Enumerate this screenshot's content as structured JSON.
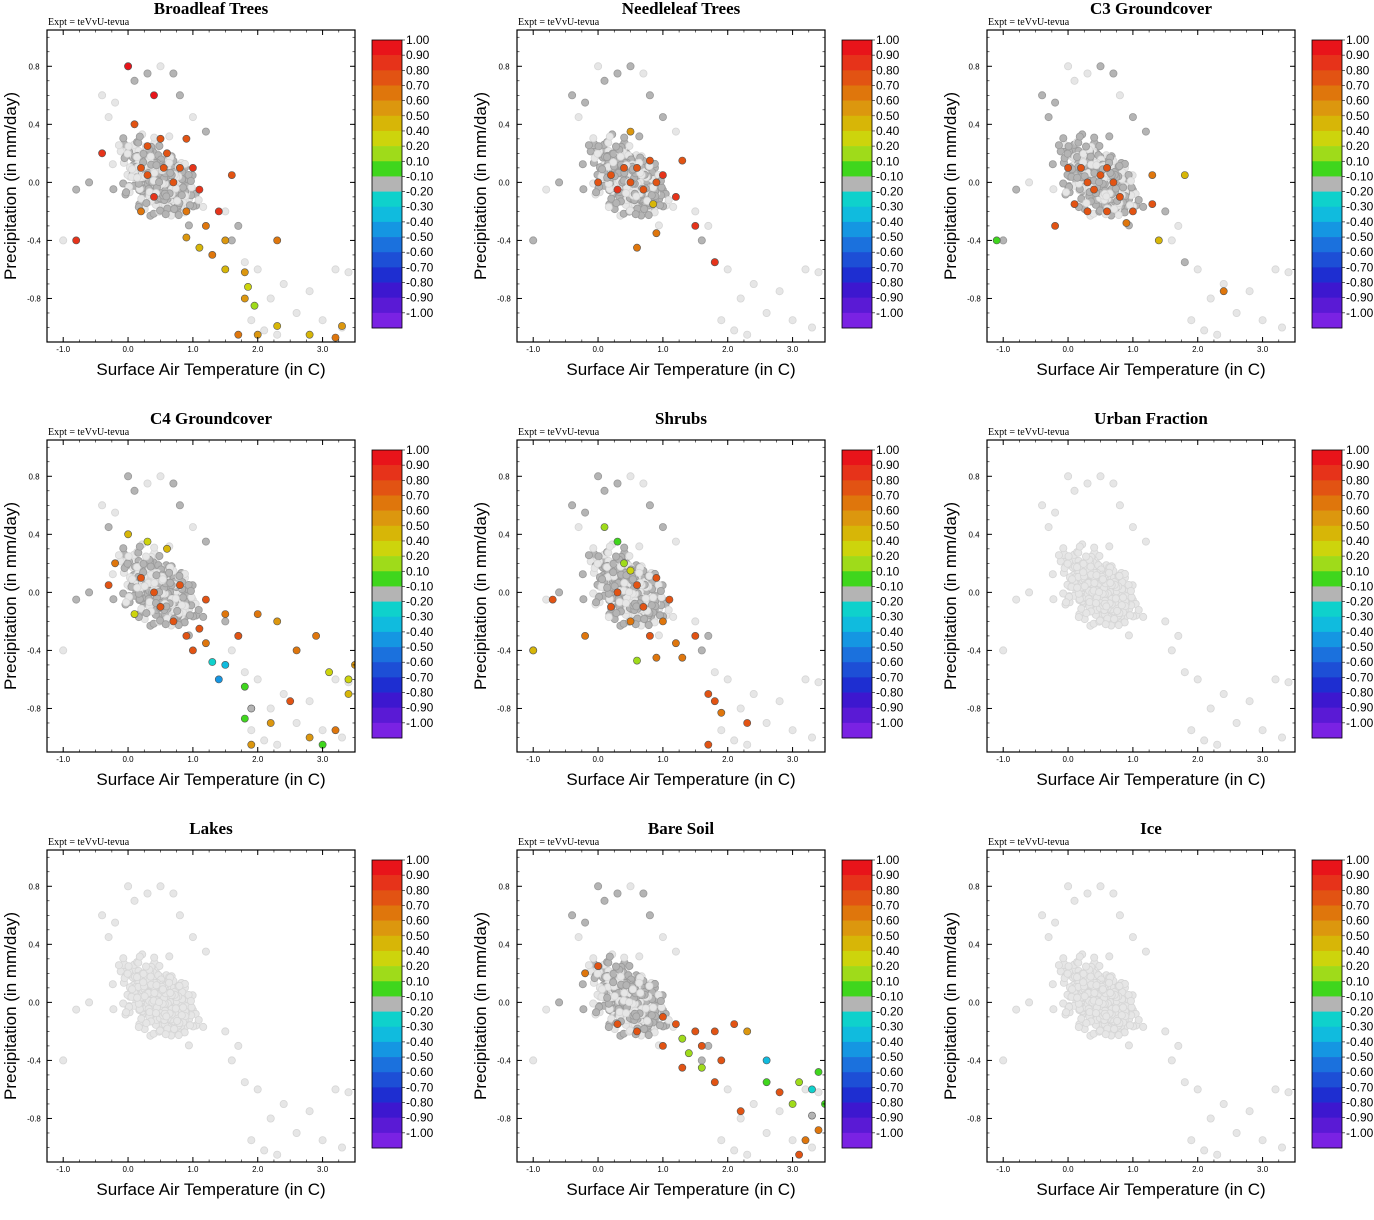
{
  "figure": {
    "expt_label": "Expt = teVvU-tevua"
  },
  "colorbar": {
    "labels": [
      "1.00",
      "0.90",
      "0.80",
      "0.70",
      "0.60",
      "0.50",
      "0.40",
      "0.20",
      "0.10",
      "-0.10",
      "-0.20",
      "-0.30",
      "-0.40",
      "-0.50",
      "-0.60",
      "-0.70",
      "-0.80",
      "-0.90",
      "-1.00"
    ],
    "colors": [
      "#e8141a",
      "#e6331a",
      "#e25313",
      "#df760c",
      "#dc970e",
      "#d7b607",
      "#cdd40c",
      "#9fdb1a",
      "#3fd61d",
      "#b4b4b4",
      "#0fd1cc",
      "#10bbde",
      "#1596e2",
      "#1b71dd",
      "#1d4fd6",
      "#1e2ed1",
      "#3d17cf",
      "#5a1ad5",
      "#7a22e3"
    ]
  },
  "chart_data": [
    {
      "type": "scatter",
      "title": "Broadleaf Trees",
      "xlabel": "Surface Air Temperature (in C)",
      "ylabel": "Precipitation (in mm/day)",
      "xlim": [
        -1.25,
        3.5
      ],
      "ylim": [
        -1.1,
        1.05
      ],
      "xticks": [
        "-1.0",
        "0.0",
        "1.0",
        "2.0",
        "3.0"
      ],
      "yticks": [
        "0.8",
        "0.4",
        "0.0",
        "-0.4",
        "-0.8"
      ],
      "points": [
        [
          0.0,
          0.8,
          0
        ],
        [
          0.4,
          0.6,
          0
        ],
        [
          0.1,
          0.4,
          2
        ],
        [
          0.3,
          0.25,
          2
        ],
        [
          0.2,
          0.1,
          2
        ],
        [
          0.5,
          0.3,
          2
        ],
        [
          0.6,
          0.2,
          2
        ],
        [
          0.7,
          0.0,
          2
        ],
        [
          0.8,
          0.1,
          2
        ],
        [
          0.9,
          0.3,
          2
        ],
        [
          0.4,
          -0.1,
          1
        ],
        [
          1.0,
          0.1,
          1
        ],
        [
          1.1,
          -0.05,
          1
        ],
        [
          1.6,
          0.05,
          2
        ],
        [
          0.3,
          0.05,
          2
        ],
        [
          0.55,
          0.1,
          2
        ],
        [
          0.2,
          -0.2,
          3
        ],
        [
          0.9,
          -0.2,
          3
        ],
        [
          1.2,
          -0.3,
          3
        ],
        [
          0.9,
          -0.38,
          4
        ],
        [
          1.1,
          -0.45,
          5
        ],
        [
          1.3,
          -0.5,
          3
        ],
        [
          1.5,
          -0.4,
          4
        ],
        [
          1.5,
          -0.6,
          5
        ],
        [
          1.8,
          -0.62,
          4
        ],
        [
          1.85,
          -0.72,
          6
        ],
        [
          1.8,
          -0.8,
          4
        ],
        [
          1.95,
          -0.85,
          7
        ],
        [
          1.7,
          -1.05,
          3
        ],
        [
          2.0,
          -1.05,
          4
        ],
        [
          2.3,
          -0.99,
          5
        ],
        [
          2.8,
          -1.05,
          5
        ],
        [
          3.3,
          -0.99,
          4
        ],
        [
          3.2,
          -1.07,
          3
        ],
        [
          2.3,
          -0.4,
          3
        ],
        [
          1.4,
          -0.2,
          1
        ],
        [
          -0.4,
          0.2,
          1
        ],
        [
          -0.8,
          -0.4,
          1
        ]
      ]
    },
    {
      "type": "scatter",
      "title": "Needleleaf Trees",
      "xlabel": "Surface Air Temperature (in C)",
      "ylabel": "Precipitation (in mm/day)",
      "xlim": [
        -1.25,
        3.5
      ],
      "ylim": [
        -1.1,
        1.05
      ],
      "xticks": [
        "-1.0",
        "0.0",
        "1.0",
        "2.0",
        "3.0"
      ],
      "yticks": [
        "0.8",
        "0.4",
        "0.0",
        "-0.4",
        "-0.8"
      ],
      "points": [
        [
          0.0,
          0.0,
          2
        ],
        [
          0.2,
          0.05,
          2
        ],
        [
          0.4,
          0.1,
          2
        ],
        [
          0.6,
          0.1,
          2
        ],
        [
          0.8,
          0.15,
          2
        ],
        [
          1.3,
          0.15,
          2
        ],
        [
          0.9,
          0.0,
          2
        ],
        [
          0.7,
          -0.05,
          2
        ],
        [
          0.5,
          0.0,
          2
        ],
        [
          0.3,
          -0.05,
          1
        ],
        [
          0.5,
          0.35,
          4
        ],
        [
          0.9,
          -0.35,
          3
        ],
        [
          0.6,
          -0.45,
          3
        ],
        [
          0.85,
          -0.15,
          5
        ],
        [
          1.0,
          0.05,
          1
        ],
        [
          1.2,
          -0.1,
          1
        ],
        [
          1.5,
          -0.3,
          1
        ],
        [
          1.8,
          -0.55,
          1
        ]
      ]
    },
    {
      "type": "scatter",
      "title": "C3 Groundcover",
      "xlabel": "Surface Air Temperature (in C)",
      "ylabel": "Precipitation (in mm/day)",
      "xlim": [
        -1.25,
        3.5
      ],
      "ylim": [
        -1.1,
        1.05
      ],
      "xticks": [
        "-1.0",
        "0.0",
        "1.0",
        "2.0",
        "3.0"
      ],
      "yticks": [
        "0.8",
        "0.4",
        "0.0",
        "-0.4",
        "-0.8"
      ],
      "points": [
        [
          -1.1,
          -0.4,
          8
        ],
        [
          -0.2,
          -0.3,
          2
        ],
        [
          0.1,
          -0.15,
          2
        ],
        [
          0.3,
          -0.2,
          2
        ],
        [
          0.4,
          -0.05,
          2
        ],
        [
          0.5,
          0.05,
          2
        ],
        [
          0.6,
          0.1,
          2
        ],
        [
          0.2,
          0.1,
          2
        ],
        [
          0.3,
          0.0,
          2
        ],
        [
          0.7,
          0.0,
          2
        ],
        [
          0.8,
          -0.1,
          2
        ],
        [
          0.6,
          -0.2,
          2
        ],
        [
          1.0,
          -0.2,
          2
        ],
        [
          1.3,
          -0.15,
          2
        ],
        [
          0.9,
          -0.28,
          3
        ],
        [
          1.3,
          0.05,
          3
        ],
        [
          1.4,
          -0.4,
          5
        ],
        [
          1.8,
          0.05,
          5
        ],
        [
          2.4,
          -0.75,
          3
        ],
        [
          0.0,
          0.1,
          2
        ]
      ]
    },
    {
      "type": "scatter",
      "title": "C4 Groundcover",
      "xlabel": "Surface Air Temperature (in C)",
      "ylabel": "Precipitation (in mm/day)",
      "xlim": [
        -1.25,
        3.5
      ],
      "ylim": [
        -1.1,
        1.05
      ],
      "xticks": [
        "-1.0",
        "0.0",
        "1.0",
        "2.0",
        "3.0"
      ],
      "yticks": [
        "0.8",
        "0.4",
        "0.0",
        "-0.4",
        "-0.8"
      ],
      "points": [
        [
          0.0,
          0.4,
          5
        ],
        [
          0.3,
          0.35,
          6
        ],
        [
          0.6,
          0.3,
          5
        ],
        [
          -0.2,
          0.2,
          3
        ],
        [
          -0.3,
          0.05,
          2
        ],
        [
          0.2,
          0.1,
          2
        ],
        [
          0.4,
          0.0,
          2
        ],
        [
          0.5,
          -0.1,
          2
        ],
        [
          0.7,
          -0.2,
          2
        ],
        [
          0.9,
          -0.3,
          2
        ],
        [
          1.0,
          -0.4,
          2
        ],
        [
          1.2,
          -0.35,
          3
        ],
        [
          1.3,
          -0.48,
          10
        ],
        [
          1.5,
          -0.5,
          11
        ],
        [
          1.4,
          -0.6,
          12
        ],
        [
          1.8,
          -0.65,
          8
        ],
        [
          1.9,
          -0.8,
          9
        ],
        [
          2.2,
          -0.9,
          4
        ],
        [
          2.5,
          -0.75,
          2
        ],
        [
          2.8,
          -1.0,
          4
        ],
        [
          3.0,
          -1.05,
          8
        ],
        [
          3.2,
          -0.95,
          3
        ],
        [
          3.4,
          -0.7,
          5
        ],
        [
          3.5,
          -0.5,
          4
        ],
        [
          3.4,
          -0.6,
          6
        ],
        [
          3.1,
          -0.55,
          6
        ],
        [
          2.9,
          -0.3,
          3
        ],
        [
          2.6,
          -0.4,
          3
        ],
        [
          2.3,
          -0.2,
          4
        ],
        [
          2.0,
          -0.15,
          3
        ],
        [
          1.7,
          -0.3,
          2
        ],
        [
          1.5,
          -0.15,
          3
        ],
        [
          1.2,
          -0.05,
          2
        ],
        [
          1.1,
          -0.25,
          2
        ],
        [
          0.8,
          0.05,
          2
        ],
        [
          0.1,
          -0.15,
          6
        ],
        [
          1.9,
          -1.05,
          4
        ],
        [
          1.8,
          -0.87,
          8
        ]
      ]
    },
    {
      "type": "scatter",
      "title": "Shrubs",
      "xlabel": "Surface Air Temperature (in C)",
      "ylabel": "Precipitation (in mm/day)",
      "xlim": [
        -1.25,
        3.5
      ],
      "ylim": [
        -1.1,
        1.05
      ],
      "xticks": [
        "-1.0",
        "0.0",
        "1.0",
        "2.0",
        "3.0"
      ],
      "yticks": [
        "0.8",
        "0.4",
        "0.0",
        "-0.4",
        "-0.8"
      ],
      "points": [
        [
          -1.0,
          -0.4,
          5
        ],
        [
          0.1,
          0.45,
          7
        ],
        [
          0.3,
          0.35,
          8
        ],
        [
          0.4,
          0.2,
          7
        ],
        [
          0.5,
          0.15,
          6
        ],
        [
          0.6,
          0.05,
          2
        ],
        [
          0.3,
          0.0,
          2
        ],
        [
          0.2,
          -0.1,
          2
        ],
        [
          0.5,
          -0.2,
          3
        ],
        [
          0.8,
          -0.3,
          2
        ],
        [
          0.9,
          -0.45,
          3
        ],
        [
          1.2,
          -0.35,
          3
        ],
        [
          1.3,
          -0.45,
          3
        ],
        [
          1.5,
          -0.3,
          2
        ],
        [
          1.7,
          -0.7,
          2
        ],
        [
          1.8,
          -0.75,
          2
        ],
        [
          1.9,
          -0.83,
          3
        ],
        [
          2.3,
          -0.9,
          2
        ],
        [
          1.7,
          -1.05,
          2
        ],
        [
          0.6,
          -0.47,
          7
        ],
        [
          0.9,
          0.1,
          2
        ],
        [
          1.1,
          -0.05,
          2
        ],
        [
          -0.2,
          -0.3,
          3
        ],
        [
          0.7,
          -0.1,
          2
        ],
        [
          1.0,
          -0.2,
          3
        ],
        [
          -0.7,
          -0.05,
          2
        ]
      ]
    },
    {
      "type": "scatter",
      "title": "Urban Fraction",
      "xlabel": "Surface Air Temperature (in C)",
      "ylabel": "Precipitation (in mm/day)",
      "xlim": [
        -1.25,
        3.5
      ],
      "ylim": [
        -1.1,
        1.05
      ],
      "xticks": [
        "-1.0",
        "0.0",
        "1.0",
        "2.0",
        "3.0"
      ],
      "yticks": [
        "0.8",
        "0.4",
        "0.0",
        "-0.4",
        "-0.8"
      ],
      "points": []
    },
    {
      "type": "scatter",
      "title": "Lakes",
      "xlabel": "Surface Air Temperature (in C)",
      "ylabel": "Precipitation (in mm/day)",
      "xlim": [
        -1.25,
        3.5
      ],
      "ylim": [
        -1.1,
        1.05
      ],
      "xticks": [
        "-1.0",
        "0.0",
        "1.0",
        "2.0",
        "3.0"
      ],
      "yticks": [
        "0.8",
        "0.4",
        "0.0",
        "-0.4",
        "-0.8"
      ],
      "points": []
    },
    {
      "type": "scatter",
      "title": "Bare Soil",
      "xlabel": "Surface Air Temperature (in C)",
      "ylabel": "Precipitation (in mm/day)",
      "xlim": [
        -1.25,
        3.5
      ],
      "ylim": [
        -1.1,
        1.05
      ],
      "xticks": [
        "-1.0",
        "0.0",
        "1.0",
        "2.0",
        "3.0"
      ],
      "yticks": [
        "0.8",
        "0.4",
        "0.0",
        "-0.4",
        "-0.8"
      ],
      "points": [
        [
          -0.2,
          0.2,
          3
        ],
        [
          0.0,
          0.25,
          2
        ],
        [
          0.3,
          -0.15,
          2
        ],
        [
          0.6,
          -0.2,
          2
        ],
        [
          1.0,
          -0.1,
          2
        ],
        [
          1.2,
          -0.15,
          2
        ],
        [
          1.3,
          -0.25,
          7
        ],
        [
          1.4,
          -0.35,
          7
        ],
        [
          1.5,
          -0.2,
          2
        ],
        [
          1.6,
          -0.3,
          2
        ],
        [
          1.8,
          -0.2,
          2
        ],
        [
          1.9,
          -0.4,
          2
        ],
        [
          2.1,
          -0.15,
          2
        ],
        [
          2.3,
          -0.2,
          4
        ],
        [
          2.6,
          -0.4,
          11
        ],
        [
          2.6,
          -0.55,
          8
        ],
        [
          2.8,
          -0.62,
          2
        ],
        [
          3.0,
          -0.7,
          7
        ],
        [
          3.1,
          -0.55,
          7
        ],
        [
          3.3,
          -0.6,
          10
        ],
        [
          3.4,
          -0.48,
          8
        ],
        [
          3.5,
          -0.7,
          8
        ],
        [
          3.2,
          -0.95,
          3
        ],
        [
          3.1,
          -1.05,
          2
        ],
        [
          2.2,
          -0.75,
          2
        ],
        [
          1.8,
          -0.55,
          2
        ],
        [
          1.6,
          -0.45,
          7
        ],
        [
          1.3,
          -0.45,
          2
        ],
        [
          1.0,
          -0.3,
          2
        ],
        [
          3.4,
          -0.88,
          3
        ],
        [
          3.3,
          -0.78,
          9
        ]
      ]
    },
    {
      "type": "scatter",
      "title": "Ice",
      "xlabel": "Surface Air Temperature (in C)",
      "ylabel": "Precipitation (in mm/day)",
      "xlim": [
        -1.25,
        3.5
      ],
      "ylim": [
        -1.1,
        1.05
      ],
      "xticks": [
        "-1.0",
        "0.0",
        "1.0",
        "2.0",
        "3.0"
      ],
      "yticks": [
        "0.8",
        "0.4",
        "0.0",
        "-0.4",
        "-0.8"
      ],
      "points": []
    }
  ]
}
